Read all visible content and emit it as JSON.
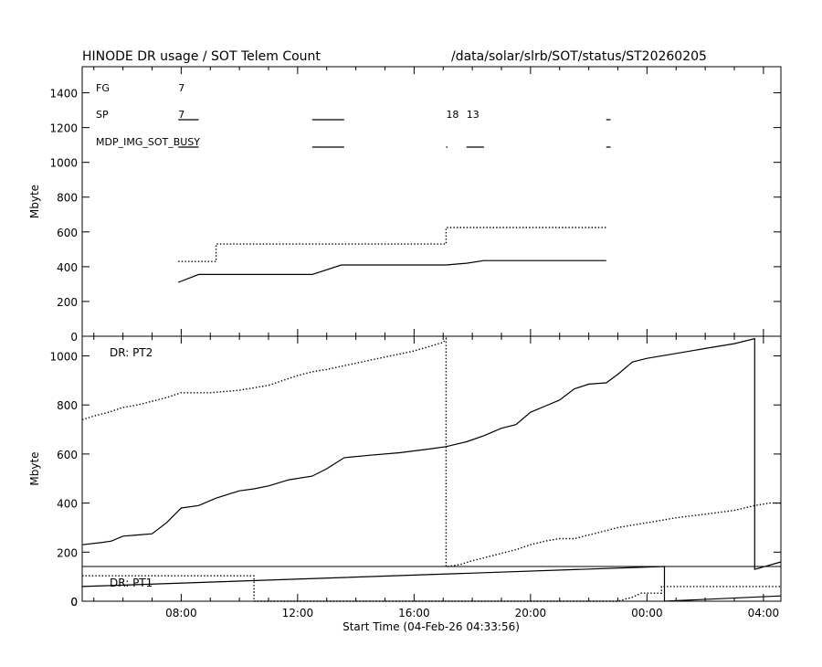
{
  "header": {
    "title": "HINODE DR usage / SOT Telem Count",
    "path": "/data/solar/slrb/SOT/status/ST20260205"
  },
  "xaxis": {
    "label": "Start Time (04-Feb-26 04:33:56)",
    "ticks": [
      "08:00",
      "12:00",
      "16:00",
      "20:00",
      "00:00",
      "04:00"
    ]
  },
  "chart_data": [
    {
      "type": "line",
      "name": "top-panel",
      "x_unit": "hours since 04-Feb-26 00:00",
      "xlim": [
        4.6,
        28.6
      ],
      "ylim": [
        0,
        1550
      ],
      "ylabel": "Mbyte",
      "yticks": [
        0,
        200,
        400,
        600,
        800,
        1000,
        1200,
        1400
      ],
      "instruments": [
        {
          "name": "FG",
          "segments": [],
          "labels": [
            {
              "text": "7",
              "x": 7.9
            }
          ]
        },
        {
          "name": "SP",
          "segments": [
            [
              7.9,
              8.6
            ],
            [
              12.5,
              13.6
            ],
            [
              22.6,
              22.75
            ]
          ],
          "labels": [
            {
              "text": "7",
              "x": 7.9
            },
            {
              "text": "18",
              "x": 17.1
            },
            {
              "text": "13",
              "x": 17.8
            }
          ]
        },
        {
          "name": "MDP_IMG_SOT_BUSY",
          "segments": [
            [
              7.9,
              8.6
            ],
            [
              12.5,
              13.0
            ],
            [
              13.0,
              13.6
            ],
            [
              17.1,
              17.15
            ],
            [
              17.8,
              18.4
            ],
            [
              22.6,
              22.75
            ]
          ],
          "labels": []
        }
      ],
      "series": [
        {
          "style": "dotted",
          "x": [
            7.9,
            9.2,
            9.2,
            17.1,
            17.1,
            22.6
          ],
          "y": [
            430,
            430,
            530,
            530,
            625,
            625
          ]
        },
        {
          "style": "solid",
          "x": [
            7.9,
            8.6,
            12.5,
            13.5,
            17.1,
            17.8,
            18.4,
            22.6
          ],
          "y": [
            310,
            355,
            355,
            410,
            410,
            420,
            435,
            435
          ]
        }
      ]
    },
    {
      "type": "line",
      "name": "middle-panel",
      "label": "DR: PT2",
      "x_unit": "hours since 04-Feb-26 00:00",
      "xlim": [
        4.6,
        28.6
      ],
      "ylim": [
        0,
        1080
      ],
      "ylabel": "Mbyte",
      "yticks": [
        0,
        200,
        400,
        600,
        800,
        1000
      ],
      "series": [
        {
          "style": "solid",
          "x": [
            4.6,
            5.3,
            5.6,
            6.0,
            6.5,
            7.0,
            7.5,
            8.0,
            8.6,
            9.2,
            10.0,
            10.5,
            11.0,
            11.7,
            12.5,
            13.0,
            13.6,
            14.5,
            15.5,
            16.5,
            17.1,
            17.8,
            18.4,
            19.0,
            19.5,
            20.0,
            20.5,
            21.0,
            21.5,
            22.0,
            22.6,
            23.0,
            23.5,
            24.0,
            25.0,
            26.0,
            27.0,
            27.7,
            27.7,
            28.0,
            28.6
          ],
          "y": [
            230,
            240,
            245,
            265,
            270,
            275,
            320,
            380,
            390,
            420,
            450,
            458,
            470,
            495,
            510,
            540,
            585,
            595,
            605,
            620,
            630,
            650,
            675,
            705,
            720,
            770,
            795,
            820,
            865,
            885,
            890,
            925,
            975,
            990,
            1010,
            1030,
            1050,
            1070,
            130,
            140,
            160
          ]
        },
        {
          "style": "dotted",
          "x": [
            4.6,
            5.0,
            5.5,
            6.0,
            6.5,
            7.0,
            7.5,
            8.0,
            9.0,
            10.0,
            11.0,
            12.0,
            12.5,
            13.0,
            14.0,
            15.0,
            16.0,
            17.0,
            17.1,
            17.1,
            17.6,
            18.0,
            18.5,
            19.0,
            19.5,
            20.0,
            20.5,
            21.0,
            21.5,
            22.0,
            22.5,
            23.0,
            24.0,
            25.0,
            26.0,
            27.0,
            27.7,
            28.2,
            28.6
          ],
          "y": [
            740,
            755,
            770,
            790,
            800,
            815,
            830,
            850,
            850,
            860,
            880,
            920,
            935,
            945,
            970,
            995,
            1020,
            1055,
            1070,
            140,
            150,
            165,
            180,
            195,
            210,
            230,
            245,
            255,
            255,
            270,
            285,
            300,
            320,
            340,
            355,
            370,
            390,
            400,
            400
          ]
        }
      ]
    },
    {
      "type": "line",
      "name": "bottom-panel",
      "label": "DR: PT1",
      "x_unit": "hours since 04-Feb-26 00:00",
      "xlim": [
        4.6,
        28.6
      ],
      "ylim": [
        0,
        130
      ],
      "yticks": [
        0
      ],
      "series": [
        {
          "style": "solid",
          "x": [
            4.6,
            24.6,
            24.6,
            28.6
          ],
          "y": [
            55,
            130,
            0,
            20
          ]
        },
        {
          "style": "dotted",
          "x": [
            4.6,
            10.5,
            10.5,
            23.0,
            23.5,
            23.8,
            24.5,
            24.5,
            28.6
          ],
          "y": [
            95,
            95,
            0,
            0,
            15,
            30,
            30,
            55,
            55
          ]
        }
      ]
    }
  ]
}
